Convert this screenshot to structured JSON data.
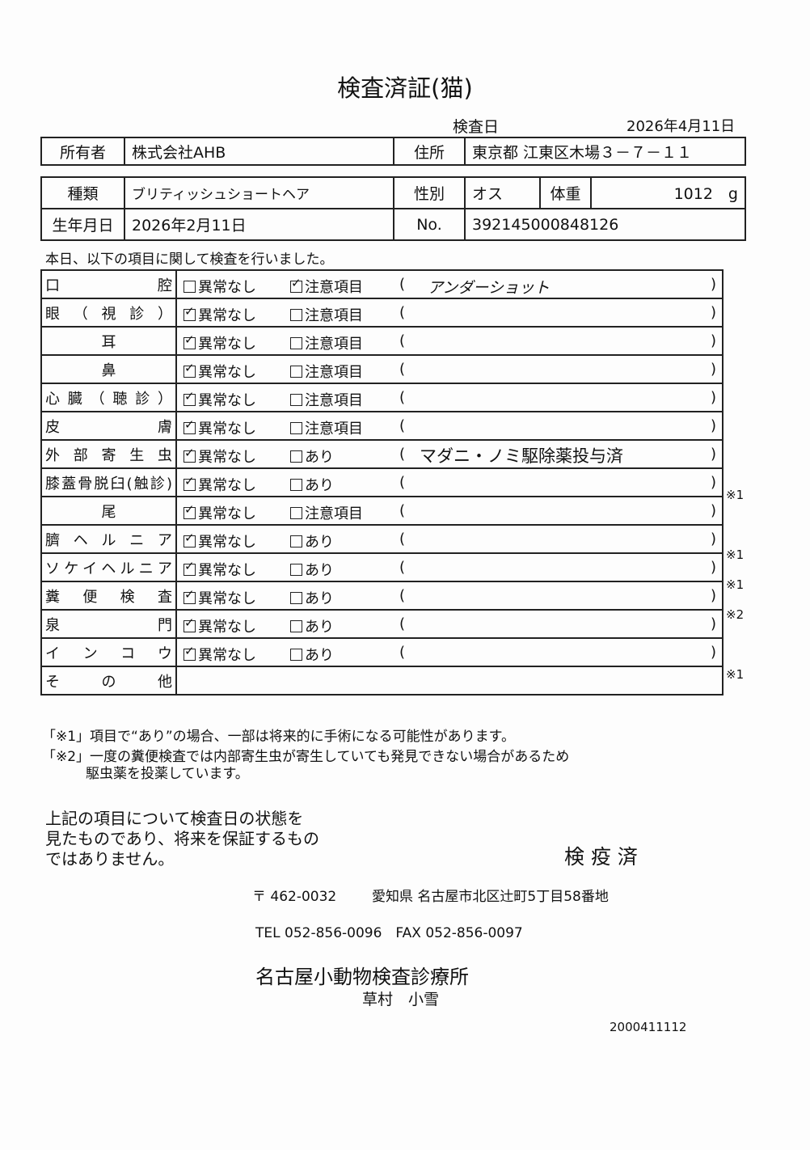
{
  "title": "検査済証(猫)",
  "exam_date_label": "検査日",
  "exam_date": "2026年4月11日",
  "owner_label": "所有者",
  "owner": "株式会社AHB",
  "address_label": "住所",
  "address": "東京都 江東区木場３－７－１１",
  "breed_label": "種類",
  "breed": "ブリティッシュショートヘア",
  "sex_label": "性別",
  "sex": "オス",
  "weight_label": "体重",
  "weight": "1012　g",
  "birth_label": "生年月日",
  "birth": "2026年2月11日",
  "no_label": "No.",
  "no": "392145000848126",
  "intro": "本日、以下の項目に関して検査を行いました。",
  "rows": [
    {
      "label": "口腔",
      "justify": true,
      "opt1": "異常なし",
      "opt1_checked": false,
      "opt2": "注意項目",
      "opt2_checked": true,
      "detail": "アンダーショット",
      "handwritten": true,
      "note": ""
    },
    {
      "label": "眼（視診）",
      "justify": true,
      "opt1": "異常なし",
      "opt1_checked": true,
      "opt2": "注意項目",
      "opt2_checked": false,
      "detail": "",
      "note": ""
    },
    {
      "label": "耳",
      "justify": false,
      "opt1": "異常なし",
      "opt1_checked": true,
      "opt2": "注意項目",
      "opt2_checked": false,
      "detail": "",
      "note": ""
    },
    {
      "label": "鼻",
      "justify": false,
      "opt1": "異常なし",
      "opt1_checked": true,
      "opt2": "注意項目",
      "opt2_checked": false,
      "detail": "",
      "note": ""
    },
    {
      "label": "心臓（聴診）",
      "justify": true,
      "opt1": "異常なし",
      "opt1_checked": true,
      "opt2": "注意項目",
      "opt2_checked": false,
      "detail": "",
      "note": ""
    },
    {
      "label": "皮膚",
      "justify": true,
      "opt1": "異常なし",
      "opt1_checked": true,
      "opt2": "注意項目",
      "opt2_checked": false,
      "detail": "",
      "note": ""
    },
    {
      "label": "外部寄生虫",
      "justify": true,
      "opt1": "異常なし",
      "opt1_checked": true,
      "opt2": "あり",
      "opt2_checked": false,
      "detail": "マダニ・ノミ駆除薬投与済",
      "note": ""
    },
    {
      "label": "膝蓋骨脱臼(触診)",
      "justify": true,
      "opt1": "異常なし",
      "opt1_checked": true,
      "opt2": "あり",
      "opt2_checked": false,
      "detail": "",
      "note": "※1"
    },
    {
      "label": "尾",
      "justify": false,
      "opt1": "異常なし",
      "opt1_checked": true,
      "opt2": "注意項目",
      "opt2_checked": false,
      "detail": "",
      "note": ""
    },
    {
      "label": "臍ヘルニア",
      "justify": true,
      "opt1": "異常なし",
      "opt1_checked": true,
      "opt2": "あり",
      "opt2_checked": false,
      "detail": "",
      "note": "※1"
    },
    {
      "label": "ソケイヘルニア",
      "justify": true,
      "opt1": "異常なし",
      "opt1_checked": true,
      "opt2": "あり",
      "opt2_checked": false,
      "detail": "",
      "note": "※1"
    },
    {
      "label": "糞便検査",
      "justify": true,
      "opt1": "異常なし",
      "opt1_checked": true,
      "opt2": "あり",
      "opt2_checked": false,
      "detail": "",
      "note": "※2"
    },
    {
      "label": "泉門",
      "justify": true,
      "opt1": "異常なし",
      "opt1_checked": true,
      "opt2": "あり",
      "opt2_checked": false,
      "detail": "",
      "note": ""
    },
    {
      "label": "インコウ",
      "justify": true,
      "opt1": "異常なし",
      "opt1_checked": true,
      "opt2": "あり",
      "opt2_checked": false,
      "detail": "",
      "note": "※1"
    },
    {
      "label": "その他",
      "justify": true,
      "opt1": "",
      "opt2": "",
      "detail": "",
      "note": "",
      "no_options": true
    }
  ],
  "footnote1": "「※1」項目で“あり”の場合、一部は将来的に手術になる可能性があります。",
  "footnote2a": "「※2」一度の糞便検査では内部寄生虫が寄生していても発見できない場合があるため",
  "footnote2b": "駆虫薬を投薬しています。",
  "disclaimer": [
    "上記の項目について検査日の状態を",
    "見たものであり、将来を保証するもの",
    "ではありません。"
  ],
  "stamp": "検 疫 済",
  "postal": "〒 462-0032",
  "clinic_address": "愛知県 名古屋市北区辻町5丁目58番地",
  "tel": "TEL 052-856-0096　FAX 052-856-0097",
  "clinic_name": "名古屋小動物検査診療所",
  "doctor": "草村　小雪",
  "doc_number": "2000411112"
}
